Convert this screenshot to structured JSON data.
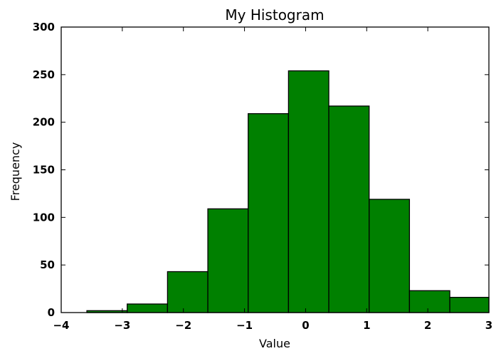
{
  "chart_data": {
    "type": "bar",
    "title": "My Histogram",
    "xlabel": "Value",
    "ylabel": "Frequency",
    "xlim": [
      -4,
      3
    ],
    "ylim": [
      0,
      300
    ],
    "x_ticks": [
      "−4",
      "−3",
      "−2",
      "−1",
      "0",
      "1",
      "2",
      "3"
    ],
    "y_ticks": [
      "0",
      "50",
      "100",
      "150",
      "200",
      "250",
      "300"
    ],
    "bin_edges": [
      -3.58,
      -2.92,
      -2.26,
      -1.6,
      -0.94,
      -0.28,
      0.38,
      1.04,
      1.7,
      2.36,
      3.0
    ],
    "values": [
      2,
      9,
      43,
      109,
      209,
      254,
      217,
      119,
      23,
      16
    ],
    "bar_color": "#008000",
    "edge_color": "#000000",
    "grid": false
  }
}
